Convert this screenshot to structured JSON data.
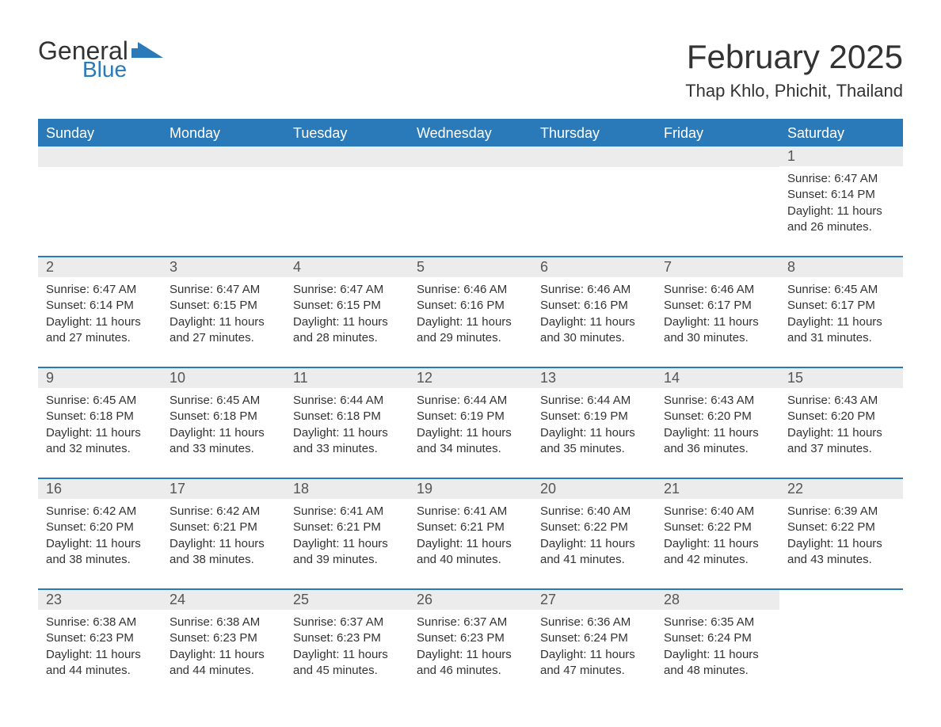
{
  "logo": {
    "word1": "General",
    "word2": "Blue"
  },
  "title": "February 2025",
  "location": "Thap Khlo, Phichit, Thailand",
  "colors": {
    "header_bg": "#2a7ab9",
    "header_text": "#ffffff",
    "daynum_bg": "#ececec",
    "row_border": "#2a7ab9",
    "text": "#333333",
    "logo_blue": "#2a7ab9",
    "page_bg": "#ffffff"
  },
  "typography": {
    "title_fontsize": 42,
    "location_fontsize": 22,
    "header_fontsize": 18,
    "daynum_fontsize": 18,
    "body_fontsize": 15
  },
  "day_headers": [
    "Sunday",
    "Monday",
    "Tuesday",
    "Wednesday",
    "Thursday",
    "Friday",
    "Saturday"
  ],
  "weeks": [
    [
      null,
      null,
      null,
      null,
      null,
      null,
      {
        "n": "1",
        "sunrise": "Sunrise: 6:47 AM",
        "sunset": "Sunset: 6:14 PM",
        "daylight": "Daylight: 11 hours and 26 minutes."
      }
    ],
    [
      {
        "n": "2",
        "sunrise": "Sunrise: 6:47 AM",
        "sunset": "Sunset: 6:14 PM",
        "daylight": "Daylight: 11 hours and 27 minutes."
      },
      {
        "n": "3",
        "sunrise": "Sunrise: 6:47 AM",
        "sunset": "Sunset: 6:15 PM",
        "daylight": "Daylight: 11 hours and 27 minutes."
      },
      {
        "n": "4",
        "sunrise": "Sunrise: 6:47 AM",
        "sunset": "Sunset: 6:15 PM",
        "daylight": "Daylight: 11 hours and 28 minutes."
      },
      {
        "n": "5",
        "sunrise": "Sunrise: 6:46 AM",
        "sunset": "Sunset: 6:16 PM",
        "daylight": "Daylight: 11 hours and 29 minutes."
      },
      {
        "n": "6",
        "sunrise": "Sunrise: 6:46 AM",
        "sunset": "Sunset: 6:16 PM",
        "daylight": "Daylight: 11 hours and 30 minutes."
      },
      {
        "n": "7",
        "sunrise": "Sunrise: 6:46 AM",
        "sunset": "Sunset: 6:17 PM",
        "daylight": "Daylight: 11 hours and 30 minutes."
      },
      {
        "n": "8",
        "sunrise": "Sunrise: 6:45 AM",
        "sunset": "Sunset: 6:17 PM",
        "daylight": "Daylight: 11 hours and 31 minutes."
      }
    ],
    [
      {
        "n": "9",
        "sunrise": "Sunrise: 6:45 AM",
        "sunset": "Sunset: 6:18 PM",
        "daylight": "Daylight: 11 hours and 32 minutes."
      },
      {
        "n": "10",
        "sunrise": "Sunrise: 6:45 AM",
        "sunset": "Sunset: 6:18 PM",
        "daylight": "Daylight: 11 hours and 33 minutes."
      },
      {
        "n": "11",
        "sunrise": "Sunrise: 6:44 AM",
        "sunset": "Sunset: 6:18 PM",
        "daylight": "Daylight: 11 hours and 33 minutes."
      },
      {
        "n": "12",
        "sunrise": "Sunrise: 6:44 AM",
        "sunset": "Sunset: 6:19 PM",
        "daylight": "Daylight: 11 hours and 34 minutes."
      },
      {
        "n": "13",
        "sunrise": "Sunrise: 6:44 AM",
        "sunset": "Sunset: 6:19 PM",
        "daylight": "Daylight: 11 hours and 35 minutes."
      },
      {
        "n": "14",
        "sunrise": "Sunrise: 6:43 AM",
        "sunset": "Sunset: 6:20 PM",
        "daylight": "Daylight: 11 hours and 36 minutes."
      },
      {
        "n": "15",
        "sunrise": "Sunrise: 6:43 AM",
        "sunset": "Sunset: 6:20 PM",
        "daylight": "Daylight: 11 hours and 37 minutes."
      }
    ],
    [
      {
        "n": "16",
        "sunrise": "Sunrise: 6:42 AM",
        "sunset": "Sunset: 6:20 PM",
        "daylight": "Daylight: 11 hours and 38 minutes."
      },
      {
        "n": "17",
        "sunrise": "Sunrise: 6:42 AM",
        "sunset": "Sunset: 6:21 PM",
        "daylight": "Daylight: 11 hours and 38 minutes."
      },
      {
        "n": "18",
        "sunrise": "Sunrise: 6:41 AM",
        "sunset": "Sunset: 6:21 PM",
        "daylight": "Daylight: 11 hours and 39 minutes."
      },
      {
        "n": "19",
        "sunrise": "Sunrise: 6:41 AM",
        "sunset": "Sunset: 6:21 PM",
        "daylight": "Daylight: 11 hours and 40 minutes."
      },
      {
        "n": "20",
        "sunrise": "Sunrise: 6:40 AM",
        "sunset": "Sunset: 6:22 PM",
        "daylight": "Daylight: 11 hours and 41 minutes."
      },
      {
        "n": "21",
        "sunrise": "Sunrise: 6:40 AM",
        "sunset": "Sunset: 6:22 PM",
        "daylight": "Daylight: 11 hours and 42 minutes."
      },
      {
        "n": "22",
        "sunrise": "Sunrise: 6:39 AM",
        "sunset": "Sunset: 6:22 PM",
        "daylight": "Daylight: 11 hours and 43 minutes."
      }
    ],
    [
      {
        "n": "23",
        "sunrise": "Sunrise: 6:38 AM",
        "sunset": "Sunset: 6:23 PM",
        "daylight": "Daylight: 11 hours and 44 minutes."
      },
      {
        "n": "24",
        "sunrise": "Sunrise: 6:38 AM",
        "sunset": "Sunset: 6:23 PM",
        "daylight": "Daylight: 11 hours and 44 minutes."
      },
      {
        "n": "25",
        "sunrise": "Sunrise: 6:37 AM",
        "sunset": "Sunset: 6:23 PM",
        "daylight": "Daylight: 11 hours and 45 minutes."
      },
      {
        "n": "26",
        "sunrise": "Sunrise: 6:37 AM",
        "sunset": "Sunset: 6:23 PM",
        "daylight": "Daylight: 11 hours and 46 minutes."
      },
      {
        "n": "27",
        "sunrise": "Sunrise: 6:36 AM",
        "sunset": "Sunset: 6:24 PM",
        "daylight": "Daylight: 11 hours and 47 minutes."
      },
      {
        "n": "28",
        "sunrise": "Sunrise: 6:35 AM",
        "sunset": "Sunset: 6:24 PM",
        "daylight": "Daylight: 11 hours and 48 minutes."
      },
      null
    ]
  ]
}
